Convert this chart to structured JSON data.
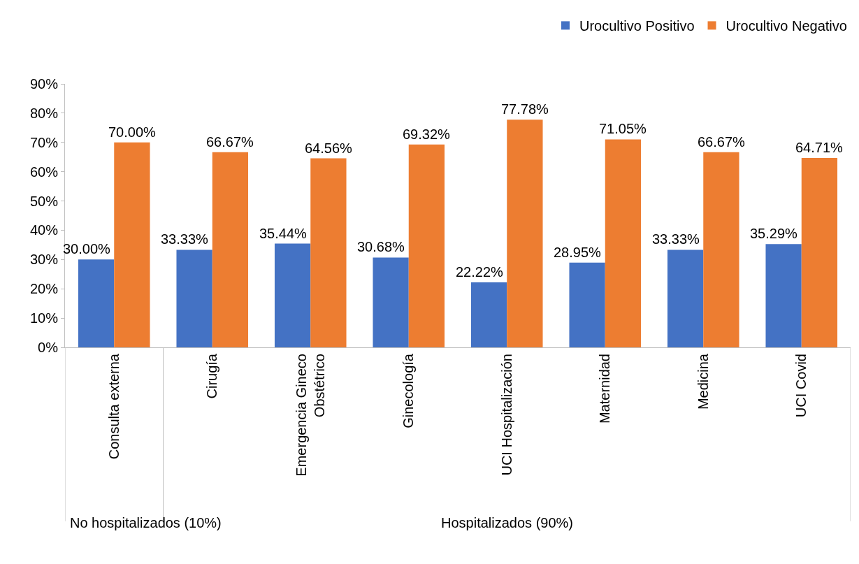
{
  "chart_data": {
    "type": "bar",
    "categories": [
      "Consulta externa",
      "Cirugía",
      "Emergencia Gineco Obstétrico",
      "Ginecología",
      "UCI Hospitalización",
      "Maternidad",
      "Medicina",
      "UCI Covid"
    ],
    "series": [
      {
        "name": "Urocultivo Positivo",
        "color": "#4472c4",
        "values": [
          30.0,
          33.33,
          35.44,
          30.68,
          22.22,
          28.95,
          33.33,
          35.29
        ],
        "value_labels": [
          "30.00%",
          "33.33%",
          "35.44%",
          "30.68%",
          "22.22%",
          "28.95%",
          "33.33%",
          "35.29%"
        ]
      },
      {
        "name": "Urocultivo Negativo",
        "color": "#ed7d31",
        "values": [
          70.0,
          66.67,
          64.56,
          69.32,
          77.78,
          71.05,
          66.67,
          64.71
        ],
        "value_labels": [
          "70.00%",
          "66.67%",
          "64.56%",
          "69.32%",
          "77.78%",
          "71.05%",
          "66.67%",
          "64.71%"
        ]
      }
    ],
    "ylim": [
      0,
      90
    ],
    "yticks": [
      {
        "value": 0,
        "label": "0%"
      },
      {
        "value": 10,
        "label": "10%"
      },
      {
        "value": 20,
        "label": "20%"
      },
      {
        "value": 30,
        "label": "30%"
      },
      {
        "value": 40,
        "label": "40%"
      },
      {
        "value": 50,
        "label": "50%"
      },
      {
        "value": 60,
        "label": "60%"
      },
      {
        "value": 70,
        "label": "70%"
      },
      {
        "value": 80,
        "label": "80%"
      },
      {
        "value": 90,
        "label": "90%"
      }
    ],
    "legend": "top right",
    "annotations": [
      "No hospitalizados (10%)",
      "Hospitalizados (90%)"
    ]
  }
}
